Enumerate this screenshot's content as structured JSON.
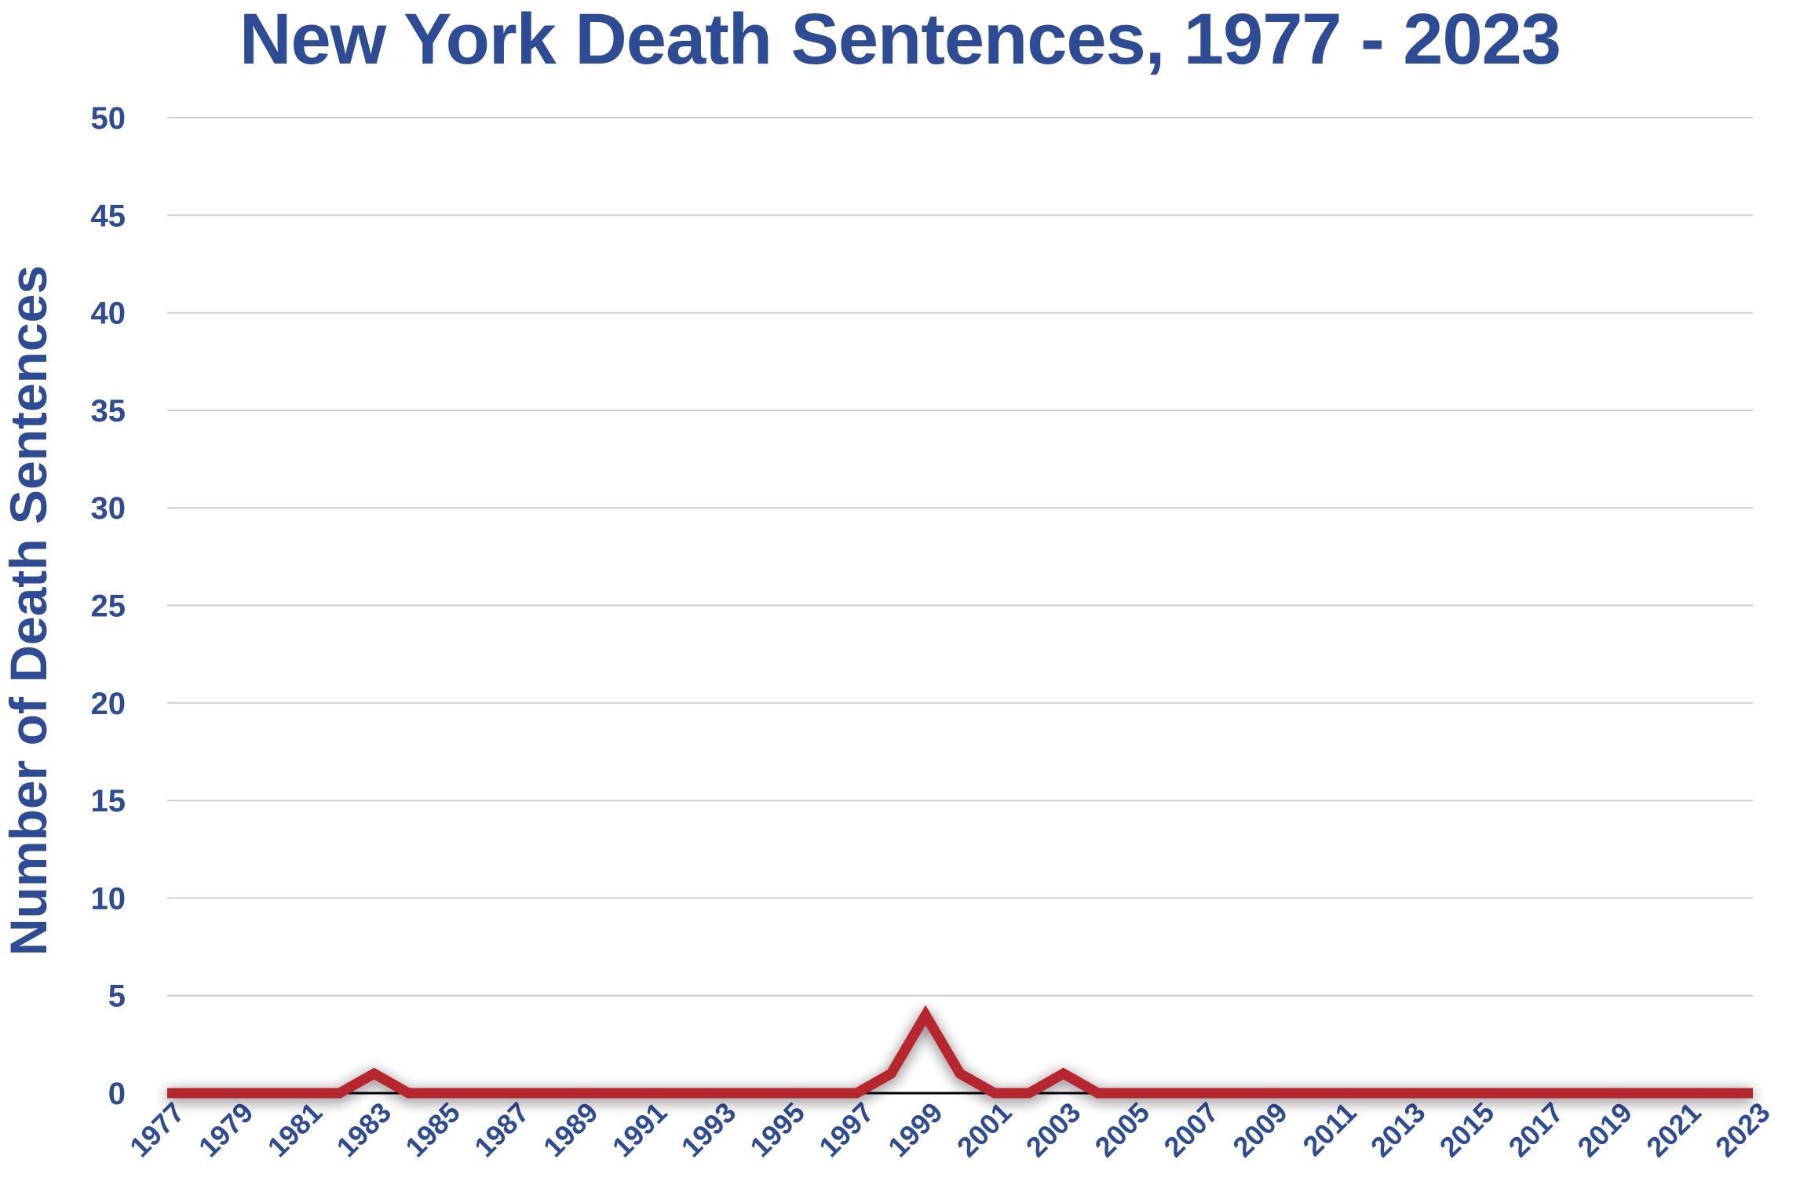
{
  "chart_data": {
    "type": "line",
    "title": "New York Death Sentences, 1977 - 2023",
    "xlabel": "",
    "ylabel": "Number of Death Sentences",
    "ylim": [
      0,
      50
    ],
    "yticks": [
      0,
      5,
      10,
      15,
      20,
      25,
      30,
      35,
      40,
      45,
      50
    ],
    "xtick_labels": [
      "1977",
      "1979",
      "1981",
      "1983",
      "1985",
      "1987",
      "1989",
      "1991",
      "1993",
      "1995",
      "1997",
      "1999",
      "2001",
      "2003",
      "2005",
      "2007",
      "2009",
      "2011",
      "2013",
      "2015",
      "2017",
      "2019",
      "2021",
      "2023"
    ],
    "grid": true,
    "legend": "none",
    "series": [
      {
        "color": "#b5272d",
        "points": [
          {
            "x": 1977,
            "y": 0
          },
          {
            "x": 1978,
            "y": 0
          },
          {
            "x": 1979,
            "y": 0
          },
          {
            "x": 1980,
            "y": 0
          },
          {
            "x": 1981,
            "y": 0
          },
          {
            "x": 1982,
            "y": 0
          },
          {
            "x": 1983,
            "y": 1
          },
          {
            "x": 1984,
            "y": 0
          },
          {
            "x": 1985,
            "y": 0
          },
          {
            "x": 1986,
            "y": 0
          },
          {
            "x": 1987,
            "y": 0
          },
          {
            "x": 1988,
            "y": 0
          },
          {
            "x": 1989,
            "y": 0
          },
          {
            "x": 1990,
            "y": 0
          },
          {
            "x": 1991,
            "y": 0
          },
          {
            "x": 1992,
            "y": 0
          },
          {
            "x": 1993,
            "y": 0
          },
          {
            "x": 1994,
            "y": 0
          },
          {
            "x": 1995,
            "y": 0
          },
          {
            "x": 1996,
            "y": 0
          },
          {
            "x": 1997,
            "y": 0
          },
          {
            "x": 1998,
            "y": 1
          },
          {
            "x": 1999,
            "y": 4
          },
          {
            "x": 2000,
            "y": 1
          },
          {
            "x": 2001,
            "y": 0
          },
          {
            "x": 2002,
            "y": 0
          },
          {
            "x": 2003,
            "y": 1
          },
          {
            "x": 2004,
            "y": 0
          },
          {
            "x": 2005,
            "y": 0
          },
          {
            "x": 2006,
            "y": 0
          },
          {
            "x": 2007,
            "y": 0
          },
          {
            "x": 2008,
            "y": 0
          },
          {
            "x": 2009,
            "y": 0
          },
          {
            "x": 2010,
            "y": 0
          },
          {
            "x": 2011,
            "y": 0
          },
          {
            "x": 2012,
            "y": 0
          },
          {
            "x": 2013,
            "y": 0
          },
          {
            "x": 2014,
            "y": 0
          },
          {
            "x": 2015,
            "y": 0
          },
          {
            "x": 2016,
            "y": 0
          },
          {
            "x": 2017,
            "y": 0
          },
          {
            "x": 2018,
            "y": 0
          },
          {
            "x": 2019,
            "y": 0
          },
          {
            "x": 2020,
            "y": 0
          },
          {
            "x": 2021,
            "y": 0
          },
          {
            "x": 2022,
            "y": 0
          },
          {
            "x": 2023,
            "y": 0
          }
        ]
      }
    ],
    "colors": {
      "title": "#2e4b95",
      "grid": "#cfcfcf",
      "baseline": "#000000"
    }
  }
}
